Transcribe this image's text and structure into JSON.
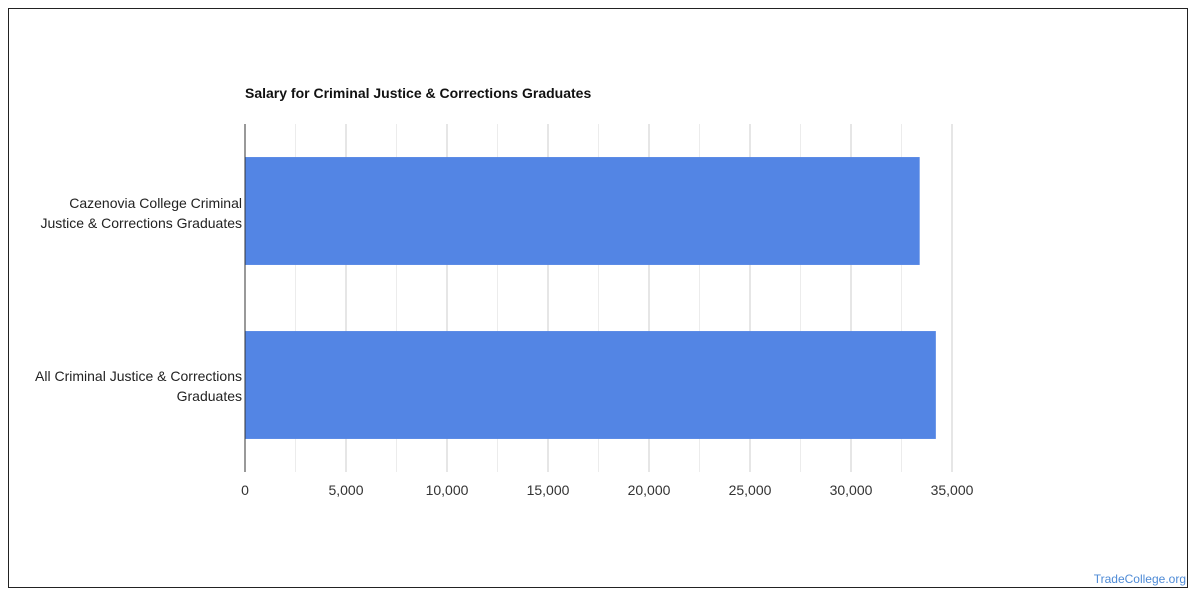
{
  "chart_data": {
    "type": "bar",
    "orientation": "horizontal",
    "title": "Salary for Criminal Justice & Corrections Graduates",
    "categories": [
      "Cazenovia College Criminal Justice & Corrections Graduates",
      "All Criminal Justice & Corrections Graduates"
    ],
    "category_lines": [
      [
        "Cazenovia College Criminal",
        "Justice & Corrections Graduates"
      ],
      [
        "All Criminal Justice & Corrections",
        "Graduates"
      ]
    ],
    "values": [
      33400,
      34200
    ],
    "xlim": [
      0,
      35000
    ],
    "ticks": [
      0,
      5000,
      10000,
      15000,
      20000,
      25000,
      30000,
      35000
    ],
    "tick_labels": [
      "0",
      "5,000",
      "10,000",
      "15,000",
      "20,000",
      "25,000",
      "30,000",
      "35,000"
    ],
    "grid": true,
    "bar_color": "#5385e4",
    "xlabel": "",
    "ylabel": ""
  },
  "watermark": "TradeCollege.org"
}
